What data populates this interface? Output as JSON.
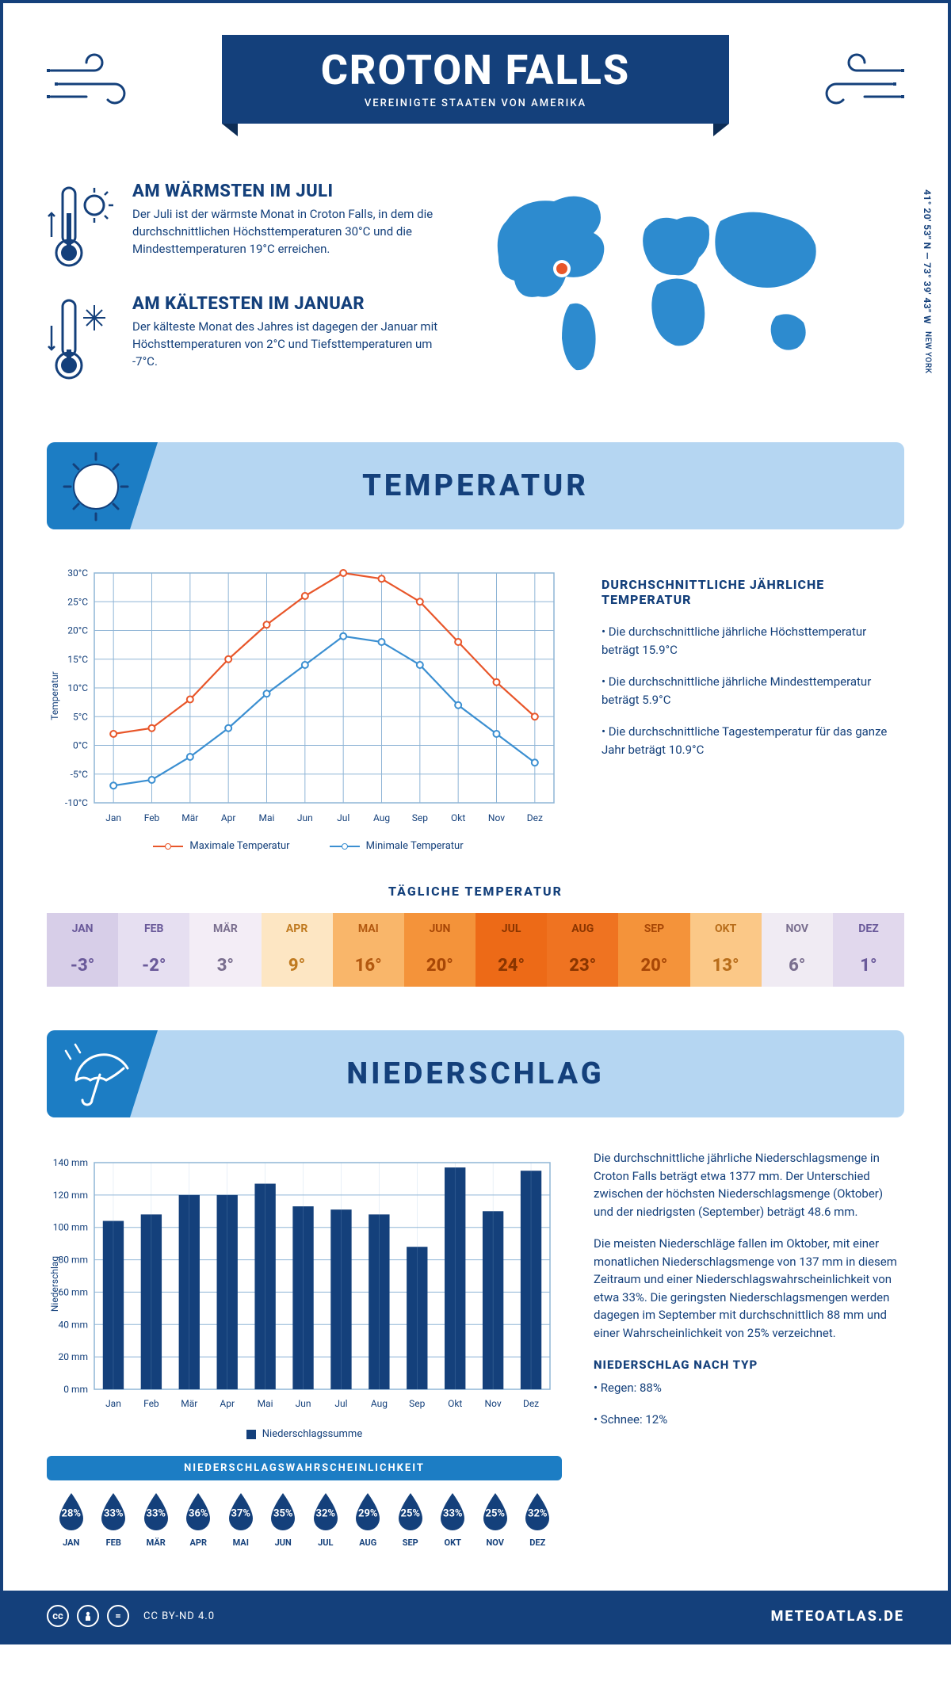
{
  "header": {
    "title": "CROTON FALLS",
    "subtitle": "VEREINIGTE STAATEN VON AMERIKA"
  },
  "coords": {
    "text": "41° 20' 53\" N — 73° 39' 43\" W",
    "state": "NEW YORK"
  },
  "warm": {
    "title": "AM WÄRMSTEN IM JULI",
    "body": "Der Juli ist der wärmste Monat in Croton Falls, in dem die durchschnittlichen Höchsttemperaturen 30°C und die Mindesttemperaturen 19°C erreichen."
  },
  "cold": {
    "title": "AM KÄLTESTEN IM JANUAR",
    "body": "Der kälteste Monat des Jahres ist dagegen der Januar mit Höchsttemperaturen von 2°C und Tiefsttemperaturen um -7°C."
  },
  "section_temp": "TEMPERATUR",
  "section_precip": "NIEDERSCHLAG",
  "months": [
    "Jan",
    "Feb",
    "Mär",
    "Apr",
    "Mai",
    "Jun",
    "Jul",
    "Aug",
    "Sep",
    "Okt",
    "Nov",
    "Dez"
  ],
  "months_upper": [
    "JAN",
    "FEB",
    "MÄR",
    "APR",
    "MAI",
    "JUN",
    "JUL",
    "AUG",
    "SEP",
    "OKT",
    "NOV",
    "DEZ"
  ],
  "temp_chart": {
    "type": "line",
    "y_title": "Temperatur",
    "ylim": [
      -10,
      30
    ],
    "ytick_step": 5,
    "ytick_labels": [
      "-10°C",
      "-5°C",
      "0°C",
      "5°C",
      "10°C",
      "15°C",
      "20°C",
      "25°C",
      "30°C"
    ],
    "grid_color": "#8fb5d6",
    "series": [
      {
        "name": "Maximale Temperatur",
        "color": "#e8562a",
        "values": [
          2,
          3,
          8,
          15,
          21,
          26,
          30,
          29,
          25,
          18,
          11,
          5
        ]
      },
      {
        "name": "Minimale Temperatur",
        "color": "#3b8fd1",
        "values": [
          -7,
          -6,
          -2,
          3,
          9,
          14,
          19,
          18,
          14,
          7,
          2,
          -3
        ]
      }
    ],
    "marker_size": 4,
    "line_width": 2.2
  },
  "temp_side": {
    "heading": "DURCHSCHNITTLICHE JÄHRLICHE TEMPERATUR",
    "p1": "• Die durchschnittliche jährliche Höchsttemperatur beträgt 15.9°C",
    "p2": "• Die durchschnittliche jährliche Mindesttemperatur beträgt 5.9°C",
    "p3": "• Die durchschnittliche Tagestemperatur für das ganze Jahr beträgt 10.9°C"
  },
  "daily": {
    "heading": "TÄGLICHE TEMPERATUR",
    "values": [
      "-3°",
      "-2°",
      "3°",
      "9°",
      "16°",
      "20°",
      "24°",
      "23°",
      "20°",
      "13°",
      "6°",
      "1°"
    ],
    "bg": [
      "#d7cee8",
      "#e6dff1",
      "#f3edf6",
      "#fde6c3",
      "#f9b66a",
      "#f4933a",
      "#ed6a17",
      "#ef7321",
      "#f4933a",
      "#fbc887",
      "#f0ebf3",
      "#e1d8ed"
    ],
    "fg": [
      "#6a5a9a",
      "#6a5a9a",
      "#7a6f8f",
      "#c07a20",
      "#b35910",
      "#a84706",
      "#8a3500",
      "#8a3500",
      "#a84706",
      "#b86d1a",
      "#7a6f8f",
      "#6a5a9a"
    ]
  },
  "precip_chart": {
    "type": "bar",
    "y_title": "Niederschlag",
    "ylim": [
      0,
      140
    ],
    "ytick_step": 20,
    "ytick_labels": [
      "0 mm",
      "20 mm",
      "40 mm",
      "60 mm",
      "80 mm",
      "100 mm",
      "120 mm",
      "140 mm"
    ],
    "bar_color": "#14407b",
    "values": [
      104,
      108,
      120,
      120,
      127,
      113,
      111,
      108,
      88,
      137,
      110,
      135
    ],
    "legend": "Niederschlagssumme",
    "grid_color": "#8fb5d6"
  },
  "precip_side": {
    "p1": "Die durchschnittliche jährliche Niederschlagsmenge in Croton Falls beträgt etwa 1377 mm. Der Unterschied zwischen der höchsten Niederschlagsmenge (Oktober) und der niedrigsten (September) beträgt 48.6 mm.",
    "p2": "Die meisten Niederschläge fallen im Oktober, mit einer monatlichen Niederschlagsmenge von 137 mm in diesem Zeitraum und einer Niederschlagswahrscheinlichkeit von etwa 33%. Die geringsten Niederschlagsmengen werden dagegen im September mit durchschnittlich 88 mm und einer Wahrscheinlichkeit von 25% verzeichnet.",
    "type_heading": "NIEDERSCHLAG NACH TYP",
    "type1": "• Regen: 88%",
    "type2": "• Schnee: 12%"
  },
  "prob": {
    "heading": "NIEDERSCHLAGSWAHRSCHEINLICHKEIT",
    "values": [
      "28%",
      "33%",
      "33%",
      "36%",
      "37%",
      "35%",
      "32%",
      "29%",
      "25%",
      "33%",
      "25%",
      "32%"
    ],
    "drop_color": "#14407b"
  },
  "footer": {
    "license": "CC BY-ND 4.0",
    "brand": "METEOATLAS.DE"
  },
  "colors": {
    "primary": "#14407b",
    "accent": "#1c7dc4",
    "banner_bg": "#b5d6f2"
  }
}
